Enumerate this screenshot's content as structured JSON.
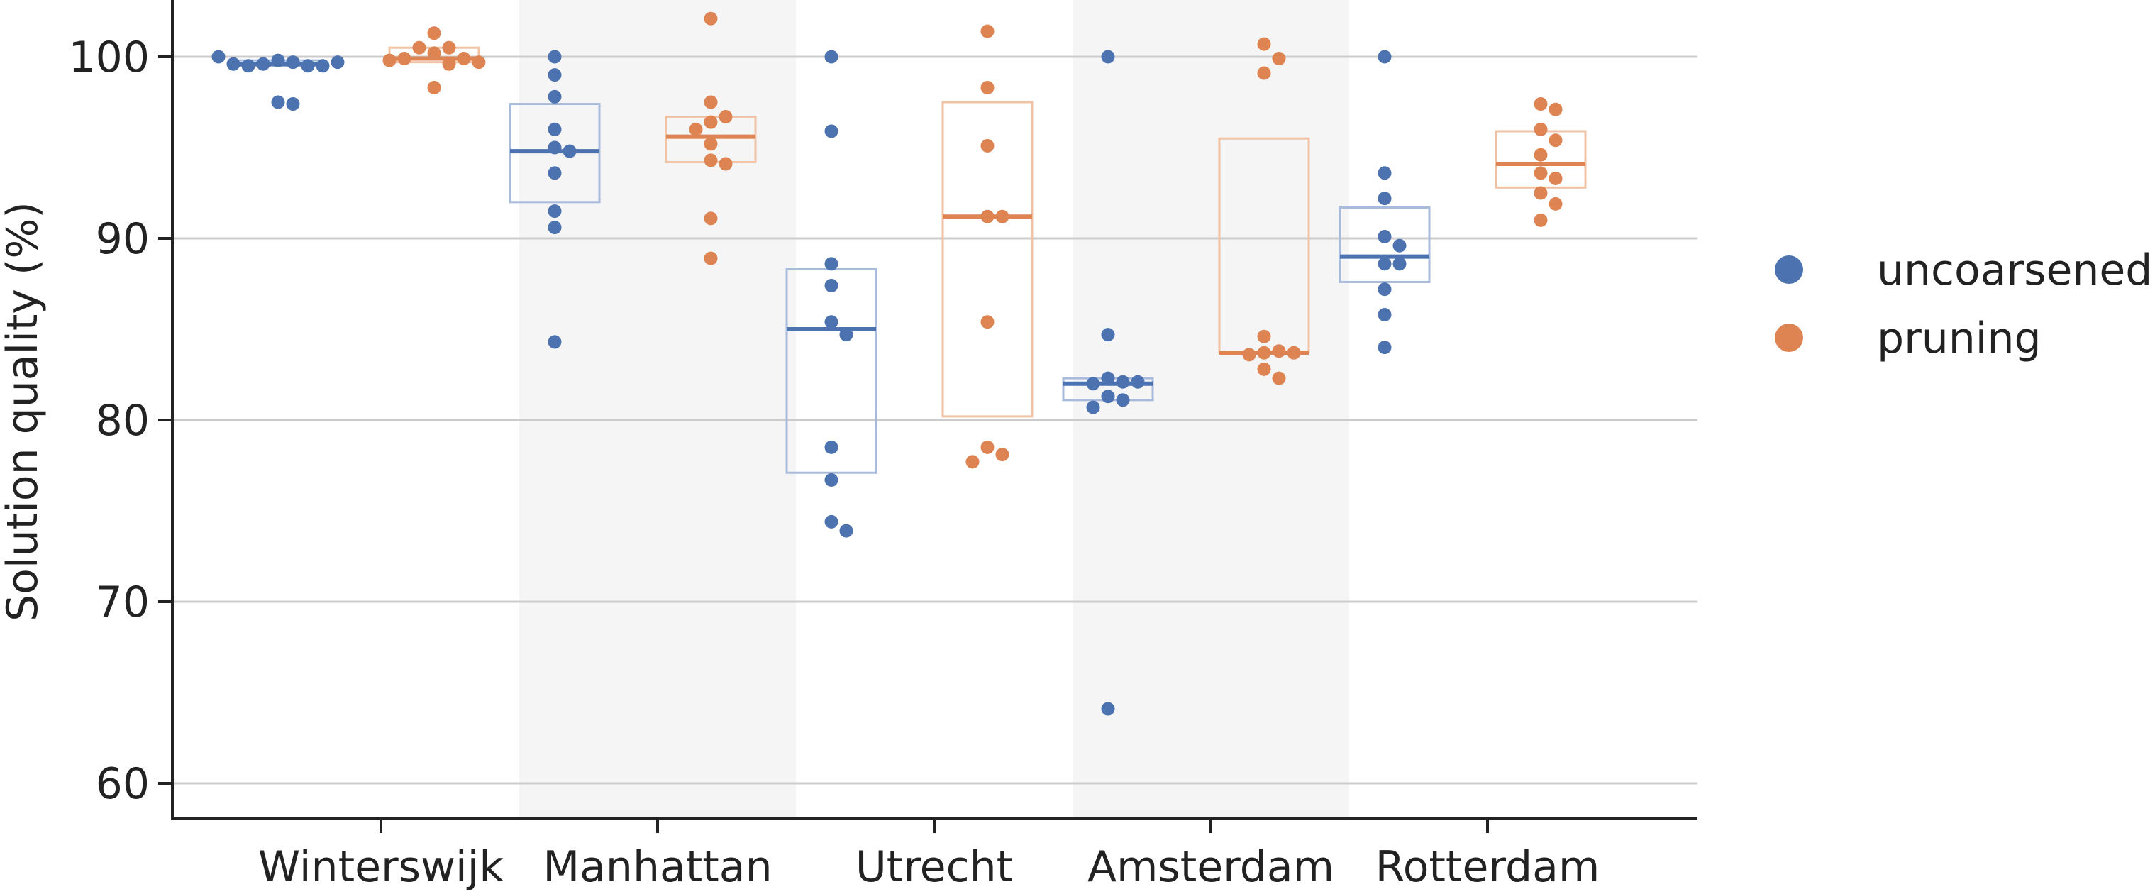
{
  "chart_data": {
    "type": "scatter",
    "subtype": "strip plot with box overlays",
    "title": "",
    "xlabel": "",
    "ylabel": "Solution quality (%)",
    "ylim": [
      57,
      104
    ],
    "yticks": [
      60,
      70,
      80,
      90,
      100
    ],
    "grid": "horizontal",
    "legend_position": "right",
    "categories": [
      "Winterswijk",
      "Manhattan",
      "Utrecht",
      "Amsterdam",
      "Rotterdam"
    ],
    "series": [
      {
        "name": "uncoarsened",
        "color": "#4C72B0",
        "points": [
          [
            99.8,
            99.7,
            99.6,
            99.5,
            99.5,
            99.5,
            99.6,
            99.7,
            100.0,
            97.5,
            97.4
          ],
          [
            100.0,
            99.0,
            97.8,
            96.0,
            95.0,
            94.8,
            93.6,
            91.5,
            90.6,
            84.3
          ],
          [
            100.0,
            95.9,
            88.6,
            87.4,
            85.4,
            84.7,
            78.5,
            76.7,
            74.4,
            73.9
          ],
          [
            100.0,
            84.7,
            82.3,
            82.1,
            82.0,
            82.1,
            81.3,
            81.1,
            80.7,
            64.1
          ],
          [
            100.0,
            93.6,
            92.2,
            90.1,
            89.6,
            88.6,
            88.6,
            87.2,
            85.8,
            84.0
          ]
        ],
        "box": [
          {
            "q1": 99.5,
            "median": 99.6,
            "q3": 99.8
          },
          {
            "q1": 92.0,
            "median": 94.8,
            "q3": 97.4
          },
          {
            "q1": 77.1,
            "median": 85.0,
            "q3": 88.3
          },
          {
            "q1": 81.1,
            "median": 82.0,
            "q3": 82.3
          },
          {
            "q1": 87.6,
            "median": 89.0,
            "q3": 91.7
          }
        ]
      },
      {
        "name": "pruning",
        "color": "#DD8452",
        "points": [
          [
            101.3,
            100.5,
            100.5,
            100.2,
            99.9,
            99.9,
            99.7,
            99.6,
            99.8,
            98.3
          ],
          [
            102.1,
            97.5,
            96.7,
            96.4,
            96.0,
            95.2,
            94.3,
            94.1,
            91.1,
            88.9
          ],
          [
            101.4,
            98.3,
            95.1,
            91.2,
            91.2,
            85.4,
            78.5,
            78.1,
            77.7
          ],
          [
            100.7,
            99.9,
            99.1,
            84.6,
            83.8,
            83.7,
            83.6,
            83.7,
            82.8,
            82.3
          ],
          [
            97.4,
            97.1,
            96.0,
            95.4,
            94.6,
            93.6,
            93.3,
            92.5,
            91.9,
            91.0
          ]
        ],
        "box": [
          {
            "q1": 99.7,
            "median": 99.9,
            "q3": 100.5
          },
          {
            "q1": 94.2,
            "median": 95.6,
            "q3": 96.7
          },
          {
            "q1": 80.2,
            "median": 91.2,
            "q3": 97.5
          },
          {
            "q1": 83.7,
            "median": 83.7,
            "q3": 95.5
          },
          {
            "q1": 92.8,
            "median": 94.1,
            "q3": 95.9
          }
        ]
      }
    ],
    "shaded_categories": [
      "Manhattan",
      "Amsterdam"
    ]
  }
}
